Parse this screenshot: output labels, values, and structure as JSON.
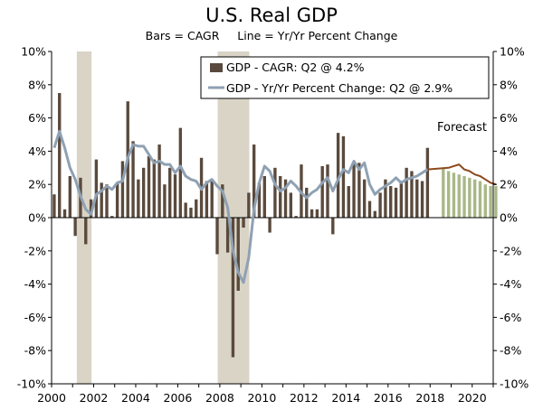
{
  "chart_data": {
    "type": "bar+line",
    "title": "U.S. Real GDP",
    "subtitle": "Bars = CAGR     Line = Yr/Yr Percent Change",
    "y_ticks_left": [
      "10%",
      "8%",
      "6%",
      "4%",
      "2%",
      "0%",
      "-2%",
      "-4%",
      "-6%",
      "-8%",
      "-10%"
    ],
    "y_ticks_right": [
      "10%",
      "8%",
      "6%",
      "4%",
      "2%",
      "0%",
      "-2%",
      "-4%",
      "-6%",
      "-8%",
      "-10%"
    ],
    "x_ticks": [
      "2000",
      "2002",
      "2004",
      "2006",
      "2008",
      "2010",
      "2012",
      "2014",
      "2016",
      "2018",
      "2020"
    ],
    "ylim": [
      -10,
      10
    ],
    "xlim": [
      2000.0,
      2021.0
    ],
    "recessions": [
      [
        2001.2,
        2001.9
      ],
      [
        2007.9,
        2009.4
      ]
    ],
    "annotation": "Forecast",
    "legend": [
      {
        "name": "GDP - CAGR: Q2 @ 4.2%",
        "color": "#5a4a3d"
      },
      {
        "name": "GDP - Yr/Yr Percent Change: Q2 @ 2.9%",
        "color": "#8fa1b3"
      }
    ],
    "series_cagr_actual": {
      "start": 2000.0,
      "step": 0.25,
      "values": [
        1.4,
        7.5,
        0.5,
        2.5,
        -1.1,
        2.4,
        -1.6,
        1.1,
        3.5,
        2.1,
        2.0,
        0.1,
        2.1,
        3.4,
        7.0,
        4.6,
        2.3,
        3.0,
        3.7,
        3.5,
        4.4,
        2.0,
        3.0,
        2.6,
        5.4,
        0.9,
        0.6,
        1.1,
        3.6,
        2.2,
        2.3,
        -2.2,
        2.0,
        -2.1,
        -8.4,
        -4.4,
        -0.6,
        1.5,
        4.4,
        2.1,
        2.5,
        -0.9,
        3.0,
        2.5,
        2.3,
        1.5,
        0.1,
        3.2,
        1.8,
        0.5,
        0.5,
        3.1,
        3.2,
        -1.0,
        5.1,
        4.9,
        1.9,
        3.3,
        3.3,
        2.3,
        1.0,
        0.4,
        1.5,
        2.3,
        1.9,
        1.8,
        2.2,
        3.0,
        2.8,
        2.3,
        2.2,
        4.2
      ]
    },
    "series_cagr_forecast": {
      "start": 2018.5,
      "step": 0.25,
      "values": [
        3.0,
        2.8,
        2.7,
        2.6,
        2.5,
        2.4,
        2.3,
        2.2,
        2.0,
        1.9,
        1.9
      ]
    },
    "series_yoy_actual": {
      "start": 2000.0,
      "step": 0.25,
      "values": [
        4.2,
        5.2,
        4.2,
        3.0,
        2.3,
        1.3,
        0.5,
        0.2,
        1.4,
        1.6,
        1.9,
        1.7,
        2.1,
        2.2,
        3.6,
        4.4,
        4.3,
        4.3,
        3.8,
        3.3,
        3.4,
        3.2,
        3.2,
        2.7,
        3.1,
        2.5,
        2.3,
        2.2,
        1.7,
        2.1,
        2.3,
        1.9,
        1.6,
        0.6,
        -2.0,
        -3.3,
        -3.9,
        -2.4,
        0.5,
        2.1,
        3.1,
        2.8,
        2.0,
        1.6,
        1.8,
        2.2,
        1.9,
        1.5,
        1.2,
        1.5,
        1.7,
        2.1,
        2.4,
        1.6,
        2.3,
        2.9,
        2.7,
        3.4,
        2.9,
        3.3,
        2.0,
        1.4,
        1.7,
        1.9,
        2.1,
        2.4,
        2.1,
        2.3,
        2.4,
        2.5,
        2.7,
        2.9
      ]
    },
    "series_yoy_forecast": {
      "start": 2018.75,
      "step": 0.25,
      "values": [
        3.0,
        3.1,
        3.2,
        2.9,
        2.8,
        2.6,
        2.5,
        2.3,
        2.1,
        2.0
      ]
    },
    "colors": {
      "bar_actual": "#5a4a3d",
      "bar_forecast": "#a9b887",
      "line_actual": "#8fa1b3",
      "line_forecast": "#8b4a1c",
      "recession": "#d9d4c6",
      "axis": "#000000"
    }
  }
}
